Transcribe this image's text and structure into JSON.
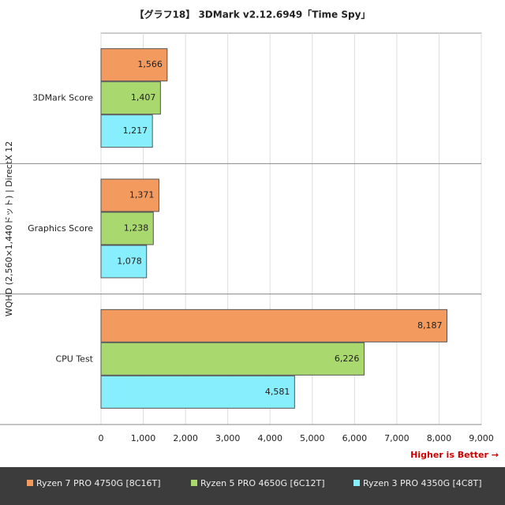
{
  "chart_data": {
    "type": "hbar",
    "title": "【グラフ18】 3DMark v2.12.6949「Time Spy」",
    "y_label": "WQHD (2,560×1,440ドット) | DirectX 12",
    "annotation": "Higher is Better →",
    "categories": [
      "3DMark Score",
      "Graphics Score",
      "CPU Test"
    ],
    "series": [
      {
        "name": "Ryzen 7 PRO 4750G [8C16T]",
        "color": "#f39a5e",
        "values": [
          1566,
          1371,
          8187
        ],
        "value_labels": [
          "1,566",
          "1,371",
          "8,187"
        ]
      },
      {
        "name": "Ryzen 5 PRO 4650G [6C12T]",
        "color": "#a8d86e",
        "values": [
          1407,
          1238,
          6226
        ],
        "value_labels": [
          "1,407",
          "1,238",
          "6,226"
        ]
      },
      {
        "name": "Ryzen 3 PRO 4350G [4C8T]",
        "color": "#86eefc",
        "values": [
          1217,
          1078,
          4581
        ],
        "value_labels": [
          "1,217",
          "1,078",
          "4,581"
        ]
      }
    ],
    "xlim": [
      0,
      9000
    ],
    "xticks": [
      0,
      {
        "value": 1000,
        "label": "1,000"
      },
      {
        "value": 2000,
        "label": "2,000"
      },
      {
        "value": 3000,
        "label": "3,000"
      },
      {
        "value": 4000,
        "label": "4,000"
      },
      {
        "value": 5000,
        "label": "5,000"
      },
      {
        "value": 6000,
        "label": "6,000"
      },
      {
        "value": 7000,
        "label": "7,000"
      },
      {
        "value": 8000,
        "label": "8,000"
      },
      {
        "value": 9000,
        "label": "9,000"
      }
    ],
    "grid": true
  }
}
